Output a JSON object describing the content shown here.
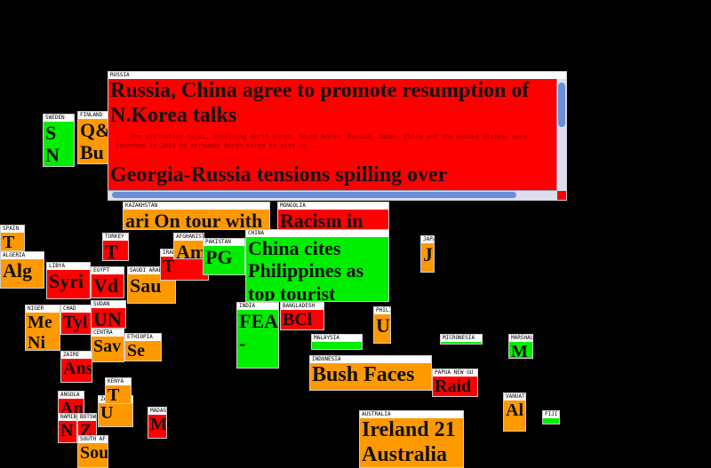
{
  "tiles": [
    {
      "country": "RUSSIA",
      "headline": "Russia, China agree to promote resumption of N.Korea talks",
      "snippet": "... The six-nation talks, involving North Korea, South Korea, Russia, Japan, China and the United States, were launched in 2003 to persuade North Korea to give up ...",
      "headline2": "Georgia-Russia tensions spilling over",
      "color": "#ff0000"
    },
    {
      "country": "KAZAKHSTAN",
      "headline": "ari On tour with",
      "color": "#ff9900"
    },
    {
      "country": "MONGOLIA",
      "headline": "Racism in",
      "color": "#ff0000"
    },
    {
      "country": "CHINA",
      "headline": "China cites Philippines as top tourist",
      "color": "#00ee00"
    },
    {
      "country": "INDONESIA",
      "headline": "Bush Faces",
      "color": "#ff9900"
    },
    {
      "country": "AUSTRALIA",
      "headline": "Ireland 21 Australia",
      "color": "#ff9900"
    },
    {
      "country": "INDIA",
      "headline": "FEA -",
      "color": "#00ee00"
    },
    {
      "country": "FINLAND",
      "headline": "Q& Bu",
      "color": "#ff9900"
    },
    {
      "country": "SWEDEN",
      "headline": "S N",
      "color": "#00ee00"
    },
    {
      "country": "ALGERIA",
      "headline": "Alg",
      "color": "#ff9900"
    },
    {
      "country": "LIBYA",
      "headline": "Syri",
      "color": "#ff0000"
    },
    {
      "country": "EGYPT",
      "headline": "Vd",
      "color": "#ff0000"
    },
    {
      "country": "SAUDI ARABIA",
      "headline": "Sau",
      "color": "#ff9900"
    },
    {
      "country": "IRAN",
      "headline": "T Envi",
      "color": "#ff0000"
    },
    {
      "country": "TURKEY",
      "headline": "T",
      "color": "#ff0000"
    },
    {
      "country": "AFGHANISTAN",
      "headline": "Am",
      "color": "#ff9900"
    },
    {
      "country": "PAKISTAN",
      "headline": "PG",
      "color": "#00ee00"
    },
    {
      "country": "SUDAN",
      "headline": "UN",
      "color": "#ff0000"
    },
    {
      "country": "CHAD",
      "headline": "Tyl",
      "color": "#ff0000"
    },
    {
      "country": "NIGER",
      "headline": "Me Ni",
      "color": "#ff9900"
    },
    {
      "country": "BANGLADESH",
      "headline": "BCl",
      "color": "#ff0000"
    },
    {
      "country": "PHILIPPINES",
      "headline": "U",
      "color": "#ff9900"
    },
    {
      "country": "JAPAN",
      "headline": "J",
      "color": "#ff9900"
    },
    {
      "country": "MALAYSIA",
      "headline": "",
      "color": "#00ee00"
    },
    {
      "country": "MICRONESIA",
      "headline": "",
      "color": "#00ee00"
    },
    {
      "country": "MARSHALL",
      "headline": "M",
      "color": "#00ee00"
    },
    {
      "country": "PAPUA NEW GU",
      "headline": "Raid",
      "color": "#ff0000"
    },
    {
      "country": "VANUATU",
      "headline": "Al",
      "color": "#ff9900"
    },
    {
      "country": "ZAMBIA",
      "headline": "U",
      "color": "#ff9900"
    },
    {
      "country": "ANGOLA",
      "headline": "An",
      "color": "#ff0000"
    },
    {
      "country": "NAMIBIA",
      "headline": "N",
      "color": "#ff0000"
    },
    {
      "country": "BOTSWANA",
      "headline": "Z",
      "color": "#ff0000"
    },
    {
      "country": "SOUTH AF",
      "headline": "Sou",
      "color": "#ff9900"
    },
    {
      "country": "MADAGA",
      "headline": "M",
      "color": "#ff0000"
    },
    {
      "country": "KENYA",
      "headline": "T",
      "color": "#ff9900"
    },
    {
      "country": "ETHIOPIA",
      "headline": "Se",
      "color": "#ff9900"
    },
    {
      "country": "CENTRA",
      "headline": "Sav",
      "color": "#ff9900"
    },
    {
      "country": "ZAIRE",
      "headline": "Ans",
      "color": "#ff0000"
    },
    {
      "country": "SPAIN",
      "headline": "T",
      "color": "#ff9900"
    },
    {
      "country": "FIJI",
      "headline": "",
      "color": "#00ee00"
    }
  ]
}
